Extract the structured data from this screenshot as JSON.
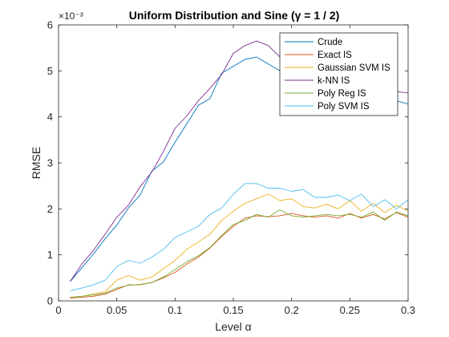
{
  "chart_data": {
    "type": "line",
    "title": "Uniform Distribution and Sine (γ = 1 / 2)",
    "xlabel": "Level α",
    "ylabel": "RMSE",
    "y_multiplier": "×10⁻³",
    "xlim": [
      0,
      0.3
    ],
    "ylim": [
      0,
      6
    ],
    "x_ticks": [
      "0",
      "0.05",
      "0.1",
      "0.15",
      "0.2",
      "0.25",
      "0.3"
    ],
    "y_ticks": [
      "0",
      "1",
      "2",
      "3",
      "4",
      "5",
      "6"
    ],
    "legend_position": "top-right",
    "grid": false,
    "x": [
      0.01,
      0.02,
      0.03,
      0.04,
      0.05,
      0.06,
      0.07,
      0.08,
      0.09,
      0.1,
      0.11,
      0.12,
      0.13,
      0.14,
      0.15,
      0.16,
      0.17,
      0.18,
      0.19,
      0.2,
      0.21,
      0.22,
      0.23,
      0.24,
      0.25,
      0.26,
      0.27,
      0.28,
      0.29,
      0.3
    ],
    "series": [
      {
        "name": "Crude",
        "color": "#0072BD",
        "values": [
          0.42,
          0.72,
          1.02,
          1.35,
          1.65,
          2.02,
          2.3,
          2.82,
          3.02,
          3.45,
          3.85,
          4.25,
          4.4,
          4.95,
          5.1,
          5.25,
          5.3,
          5.15,
          5.0,
          4.95,
          4.92,
          4.85,
          4.75,
          4.7,
          4.62,
          4.55,
          4.5,
          4.42,
          4.35,
          4.28
        ]
      },
      {
        "name": "Exact IS",
        "color": "#D95319",
        "values": [
          0.06,
          0.08,
          0.1,
          0.15,
          0.25,
          0.35,
          0.35,
          0.4,
          0.5,
          0.62,
          0.8,
          0.95,
          1.15,
          1.4,
          1.62,
          1.8,
          1.85,
          1.83,
          1.85,
          1.9,
          1.85,
          1.82,
          1.85,
          1.8,
          1.9,
          1.8,
          1.88,
          1.78,
          1.92,
          1.82
        ]
      },
      {
        "name": "Gaussian SVM IS",
        "color": "#EDB120",
        "values": [
          0.08,
          0.1,
          0.15,
          0.2,
          0.45,
          0.55,
          0.45,
          0.52,
          0.7,
          0.88,
          1.12,
          1.28,
          1.45,
          1.75,
          1.95,
          2.12,
          2.22,
          2.32,
          2.18,
          2.22,
          2.05,
          2.02,
          2.1,
          2.0,
          2.18,
          1.95,
          2.12,
          1.92,
          2.08,
          1.95
        ]
      },
      {
        "name": "k-NN IS",
        "color": "#7E2F8E",
        "values": [
          0.42,
          0.8,
          1.1,
          1.45,
          1.82,
          2.08,
          2.48,
          2.8,
          3.25,
          3.75,
          4.02,
          4.35,
          4.62,
          4.92,
          5.38,
          5.55,
          5.65,
          5.55,
          5.3,
          5.15,
          5.0,
          4.9,
          4.85,
          4.78,
          4.7,
          4.68,
          4.6,
          4.6,
          4.55,
          4.52
        ]
      },
      {
        "name": "Poly Reg IS",
        "color": "#77AC30",
        "values": [
          0.08,
          0.1,
          0.13,
          0.17,
          0.28,
          0.34,
          0.36,
          0.4,
          0.52,
          0.68,
          0.85,
          0.98,
          1.16,
          1.42,
          1.66,
          1.75,
          1.88,
          1.82,
          1.98,
          1.85,
          1.82,
          1.85,
          1.88,
          1.85,
          1.88,
          1.82,
          1.93,
          1.75,
          1.93,
          1.85
        ]
      },
      {
        "name": "Poly SVM IS",
        "color": "#4DBEEE",
        "values": [
          0.22,
          0.28,
          0.35,
          0.45,
          0.75,
          0.88,
          0.82,
          0.95,
          1.12,
          1.38,
          1.5,
          1.62,
          1.88,
          2.02,
          2.32,
          2.55,
          2.55,
          2.45,
          2.45,
          2.38,
          2.42,
          2.25,
          2.25,
          2.3,
          2.18,
          2.32,
          2.05,
          2.2,
          2.0,
          2.2
        ]
      }
    ]
  }
}
